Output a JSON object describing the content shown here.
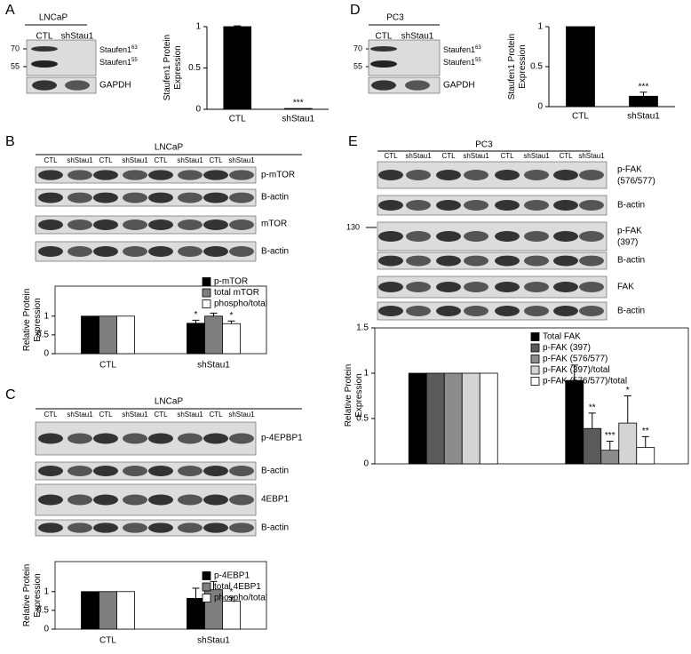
{
  "blots": [
    {
      "letter": "A",
      "cell_line": "LNCaP",
      "lanes": [
        "CTL",
        "shStau1"
      ],
      "markers": [
        "70",
        "55"
      ],
      "rows": [
        {
          "labels": [
            {
              "text": "Staufen1",
              "sup": "63"
            },
            {
              "text": "Staufen1",
              "sup": "55"
            }
          ]
        },
        {
          "labels": [
            "GAPDH"
          ]
        }
      ]
    },
    {
      "letter": "B",
      "cell_line": "LNCaP",
      "lanes": [
        "CTL",
        "shStau1",
        "CTL",
        "shStau1",
        "CTL",
        "shStau1",
        "CTL",
        "shStau1"
      ],
      "rows": [
        {
          "labels": [
            "p-mTOR"
          ]
        },
        {
          "labels": [
            "B-actin"
          ]
        },
        {
          "labels": [
            "mTOR"
          ]
        },
        {
          "labels": [
            "B-actin"
          ]
        }
      ]
    },
    {
      "letter": "C",
      "cell_line": "LNCaP",
      "lanes": [
        "CTL",
        "shStau1",
        "CTL",
        "shStau1",
        "CTL",
        "shStau1",
        "CTL",
        "shStau1"
      ],
      "rows": [
        {
          "labels": [
            "p-4EPBP1"
          ]
        },
        {
          "labels": [
            "B-actin"
          ]
        },
        {
          "labels": [
            "4EBP1"
          ]
        },
        {
          "labels": [
            "B-actin"
          ]
        }
      ]
    },
    {
      "letter": "D",
      "cell_line": "PC3",
      "lanes": [
        "CTL",
        "shStau1"
      ],
      "markers": [
        "70",
        "55"
      ],
      "rows": [
        {
          "labels": [
            {
              "text": "Staufen1",
              "sup": "63"
            },
            {
              "text": "Staufen1",
              "sup": "55"
            }
          ]
        },
        {
          "labels": [
            "GAPDH"
          ]
        }
      ]
    },
    {
      "letter": "E",
      "cell_line": "PC3",
      "lanes": [
        "CTL",
        "shStau1",
        "CTL",
        "shStau1",
        "CTL",
        "shStau1",
        "CTL",
        "shStau1"
      ],
      "markers": [
        "130"
      ],
      "rows": [
        {
          "labels": [
            "p-FAK",
            "(576/577)"
          ]
        },
        {
          "labels": [
            "B-actin"
          ]
        },
        {
          "labels": [
            "p-FAK",
            "(397)"
          ]
        },
        {
          "labels": [
            "B-actin"
          ]
        },
        {
          "labels": [
            "FAK"
          ]
        },
        {
          "labels": [
            "B-actin"
          ]
        }
      ]
    }
  ],
  "chart_data": [
    {
      "type": "bar",
      "y_label": [
        "Staufen1 Protein",
        "Expression"
      ],
      "categories": [
        "CTL",
        "shStau1"
      ],
      "series": [
        {
          "color": "#000000",
          "values": [
            1,
            0.01
          ],
          "errors": [
            0.01,
            null
          ],
          "significance": [
            null,
            "***"
          ]
        }
      ],
      "ylim": [
        0,
        1
      ],
      "yticks": [
        0,
        0.5,
        1
      ],
      "box": false
    },
    {
      "type": "bar",
      "y_label": [
        "Relative Protein",
        "Expression"
      ],
      "categories": [
        "CTL",
        "shStau1"
      ],
      "series": [
        {
          "name": "p-mTOR",
          "color": "#000000",
          "values": [
            1,
            0.81
          ],
          "errors": [
            null,
            0.08
          ],
          "significance": [
            null,
            "*"
          ]
        },
        {
          "name": "total mTOR",
          "color": "#7f7f7f",
          "values": [
            1,
            1.0
          ],
          "errors": [
            null,
            0.08
          ],
          "significance": [
            null,
            null
          ]
        },
        {
          "name": "phospho/total",
          "color": "#ffffff",
          "values": [
            1,
            0.8
          ],
          "errors": [
            null,
            0.07
          ],
          "significance": [
            null,
            "*"
          ]
        }
      ],
      "ylim": [
        0,
        1.8
      ],
      "yticks": [
        0,
        0.5,
        1
      ],
      "box": true
    },
    {
      "type": "bar",
      "y_label": [
        "Relative Protein",
        "Expression"
      ],
      "categories": [
        "CTL",
        "shStau1"
      ],
      "series": [
        {
          "name": "p-4EBP1",
          "color": "#000000",
          "values": [
            1,
            0.82
          ],
          "errors": [
            null,
            0.27
          ],
          "significance": [
            null,
            null
          ]
        },
        {
          "name": "total 4EBP1",
          "color": "#7f7f7f",
          "values": [
            1,
            1.05
          ],
          "errors": [
            null,
            0.22
          ],
          "significance": [
            null,
            null
          ]
        },
        {
          "name": "phospho/total",
          "color": "#ffffff",
          "values": [
            1,
            0.75
          ],
          "errors": [
            null,
            0.1
          ],
          "significance": [
            null,
            "*"
          ]
        }
      ],
      "ylim": [
        0,
        1.8
      ],
      "yticks": [
        0,
        0.5,
        1
      ],
      "box": true
    },
    {
      "type": "bar",
      "y_label": [
        "Staufen1 Protein",
        "Expression"
      ],
      "categories": [
        "CTL",
        "shStau1"
      ],
      "series": [
        {
          "color": "#000000",
          "values": [
            1,
            0.13
          ],
          "errors": [
            null,
            0.05
          ],
          "significance": [
            null,
            "***"
          ]
        }
      ],
      "ylim": [
        0,
        1
      ],
      "yticks": [
        0,
        0.5,
        1
      ],
      "box": false
    },
    {
      "type": "bar",
      "y_label": [
        "Relative Protein",
        "Expression"
      ],
      "categories": [
        null,
        null
      ],
      "series": [
        {
          "name": "Total FAK",
          "color": "#000000",
          "values": [
            1,
            0.92
          ],
          "errors": [
            null,
            0.17
          ],
          "significance": [
            null,
            null
          ]
        },
        {
          "name": "p-FAK (397)",
          "color": "#5a5a5a",
          "values": [
            1,
            0.39
          ],
          "errors": [
            null,
            0.17
          ],
          "significance": [
            null,
            "**"
          ]
        },
        {
          "name": "p-FAK (576/577)",
          "color": "#8c8c8c",
          "values": [
            1,
            0.15
          ],
          "errors": [
            null,
            0.1
          ],
          "significance": [
            null,
            "***"
          ]
        },
        {
          "name": "p-FAK (397)/total",
          "color": "#d4d4d4",
          "values": [
            1,
            0.45
          ],
          "errors": [
            null,
            0.3
          ],
          "significance": [
            null,
            "*"
          ]
        },
        {
          "name": "p-FAK (576/577)/total",
          "color": "#ffffff",
          "values": [
            1,
            0.18
          ],
          "errors": [
            null,
            0.12
          ],
          "significance": [
            null,
            "**"
          ]
        }
      ],
      "ylim": [
        0,
        1.5
      ],
      "yticks": [
        0,
        0.5,
        1,
        1.5
      ],
      "box": true
    }
  ]
}
